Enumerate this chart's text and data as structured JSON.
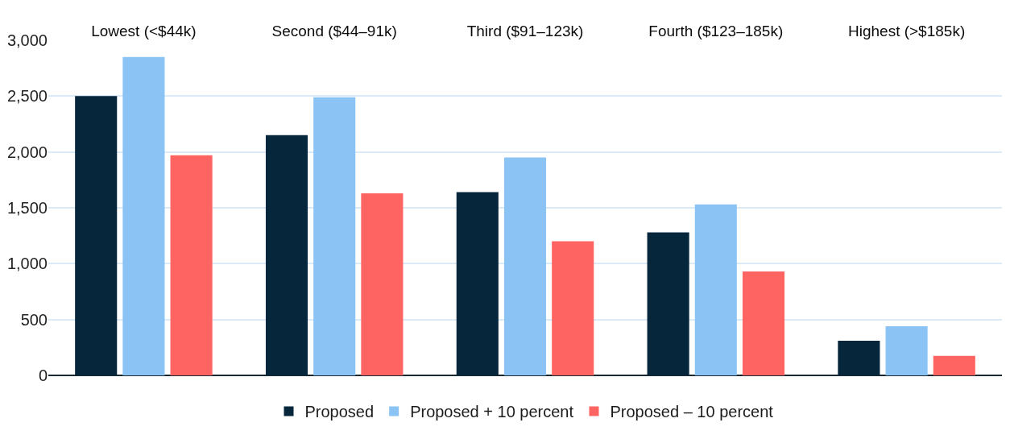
{
  "chart_data": {
    "type": "bar",
    "categories": [
      "Lowest (<$44k)",
      "Second ($44–91k)",
      "Third ($91–123k)",
      "Fourth ($123–185k)",
      "Highest (>$185k)"
    ],
    "series": [
      {
        "name": "Proposed",
        "color": "#06263b",
        "values": [
          2500,
          2150,
          1640,
          1280,
          310
        ]
      },
      {
        "name": "Proposed + 10 percent",
        "color": "#8bc4f4",
        "values": [
          2850,
          2490,
          1950,
          1530,
          440
        ]
      },
      {
        "name": "Proposed – 10 percent",
        "color": "#fe6462",
        "values": [
          1970,
          1630,
          1200,
          930,
          175
        ]
      }
    ],
    "ylim": [
      0,
      3000
    ],
    "yticks": [
      0,
      500,
      {
        "value": 1000,
        "label": "1,000"
      },
      {
        "value": 1500,
        "label": "1,500"
      },
      {
        "value": 2000,
        "label": "2,000"
      },
      {
        "value": 2500,
        "label": "2,500"
      },
      {
        "value": 3000,
        "label": "3,000"
      }
    ],
    "grid": "y",
    "legend": "bottom"
  }
}
